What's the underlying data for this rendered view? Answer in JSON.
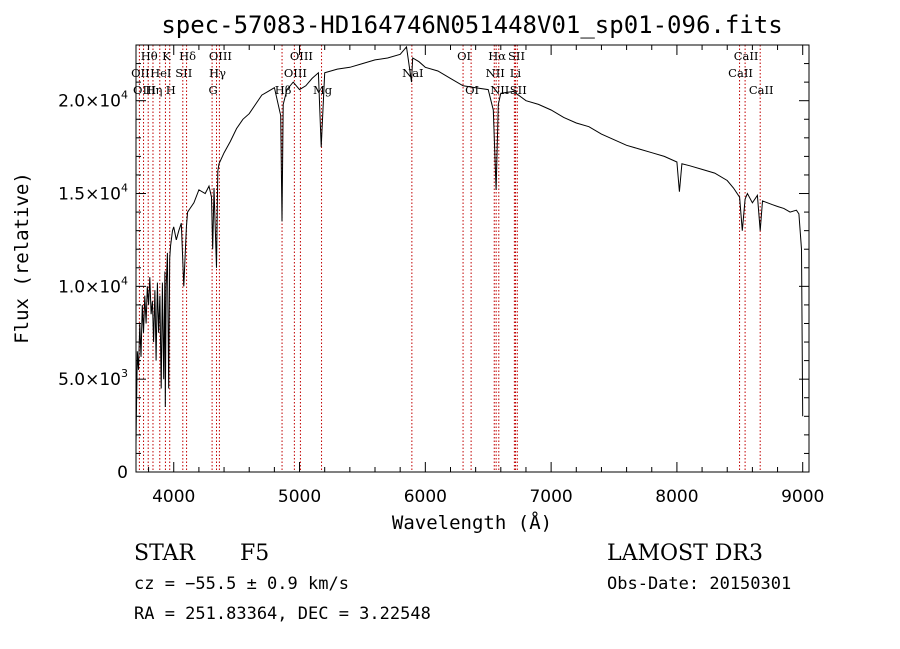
{
  "chart_data": {
    "type": "line",
    "title": "spec-57083-HD164746N051448V01_sp01-096.fits",
    "xlabel": "Wavelength (Å)",
    "ylabel": "Flux (relative)",
    "xlim": [
      3700,
      9050
    ],
    "ylim": [
      0,
      23000
    ],
    "x_ticks": [
      {
        "value": 4000,
        "label": "4000"
      },
      {
        "value": 5000,
        "label": "5000"
      },
      {
        "value": 6000,
        "label": "6000"
      },
      {
        "value": 7000,
        "label": "7000"
      },
      {
        "value": 8000,
        "label": "8000"
      },
      {
        "value": 9000,
        "label": "9000"
      }
    ],
    "y_ticks": [
      {
        "value": 0,
        "mant": "0",
        "exp": ""
      },
      {
        "value": 5000,
        "mant": "5.0×10",
        "exp": "3"
      },
      {
        "value": 10000,
        "mant": "1.0×10",
        "exp": "4"
      },
      {
        "value": 15000,
        "mant": "1.5×10",
        "exp": "4"
      },
      {
        "value": 20000,
        "mant": "2.0×10",
        "exp": "4"
      }
    ],
    "line_color": "#000000",
    "marker_color": "#c00000",
    "series": [
      {
        "x": [
          3700,
          3710,
          3720,
          3730,
          3740,
          3750,
          3760,
          3770,
          3780,
          3790,
          3800,
          3810,
          3820,
          3830,
          3840,
          3850,
          3860,
          3870,
          3880,
          3890,
          3900,
          3910,
          3920,
          3930,
          3933,
          3940,
          3950,
          3960,
          3968,
          3975,
          3990,
          4000,
          4020,
          4040,
          4060,
          4080,
          4101,
          4110,
          4130,
          4160,
          4200,
          4250,
          4280,
          4300,
          4310,
          4320,
          4340,
          4350,
          4360,
          4400,
          4450,
          4500,
          4550,
          4600,
          4650,
          4700,
          4750,
          4800,
          4850,
          4861,
          4870,
          4900,
          4950,
          5000,
          5050,
          5100,
          5150,
          5172,
          5200,
          5300,
          5400,
          5500,
          5600,
          5700,
          5800,
          5850,
          5890,
          5900,
          5950,
          6000,
          6100,
          6200,
          6300,
          6400,
          6500,
          6540,
          6563,
          6580,
          6600,
          6700,
          6800,
          6900,
          7000,
          7100,
          7200,
          7300,
          7400,
          7500,
          7600,
          7700,
          7800,
          7900,
          8000,
          8020,
          8040,
          8100,
          8200,
          8300,
          8400,
          8450,
          8498,
          8520,
          8542,
          8560,
          8600,
          8640,
          8662,
          8680,
          8720,
          8760,
          8800,
          8850,
          8900,
          8950,
          8970,
          8990,
          9000
        ],
        "y": [
          1500,
          6500,
          5500,
          8000,
          6200,
          9000,
          7500,
          9500,
          8000,
          10000,
          9000,
          10500,
          8500,
          9200,
          7000,
          9800,
          6000,
          10200,
          7500,
          9500,
          4500,
          10200,
          5000,
          10800,
          3500,
          10000,
          11800,
          4500,
          11500,
          12200,
          13000,
          13200,
          12500,
          13000,
          13400,
          10000,
          13200,
          14000,
          14200,
          14500,
          15200,
          15000,
          15400,
          14800,
          12000,
          15300,
          11000,
          16200,
          16600,
          17200,
          17800,
          18500,
          19000,
          19300,
          19800,
          20300,
          20500,
          20700,
          19200,
          13500,
          19800,
          20600,
          21000,
          20600,
          20800,
          21200,
          21500,
          17500,
          21500,
          21700,
          21800,
          22000,
          22200,
          22300,
          22500,
          22900,
          21000,
          22300,
          22100,
          21800,
          21600,
          21200,
          20800,
          20700,
          20600,
          19500,
          15200,
          19800,
          20400,
          20500,
          20000,
          19800,
          19500,
          19100,
          18800,
          18600,
          18200,
          17900,
          17600,
          17400,
          17200,
          17000,
          16700,
          15100,
          16600,
          16500,
          16300,
          16100,
          15700,
          15300,
          14800,
          13000,
          14700,
          15000,
          14500,
          14900,
          13000,
          14600,
          14500,
          14400,
          14300,
          14200,
          14000,
          14100,
          13900,
          12000,
          3000
        ]
      }
    ],
    "spectral_lines": [
      {
        "name": "Hθ",
        "wl": 3797,
        "row": 0
      },
      {
        "name": "OII",
        "wl": 3727,
        "row": 1
      },
      {
        "name": "OIII",
        "wl": 3760,
        "row": 2
      },
      {
        "name": "K",
        "wl": 3934,
        "row": 0
      },
      {
        "name": "HeI",
        "wl": 3889,
        "row": 1
      },
      {
        "name": "Hη",
        "wl": 3835,
        "row": 2
      },
      {
        "name": "SII",
        "wl": 4072,
        "row": 1
      },
      {
        "name": "H",
        "wl": 3968,
        "row": 2
      },
      {
        "name": "Hδ",
        "wl": 4102,
        "row": 0
      },
      {
        "name": "OIII",
        "wl": 4363,
        "row": 0
      },
      {
        "name": "Hγ",
        "wl": 4340,
        "row": 1
      },
      {
        "name": "G",
        "wl": 4305,
        "row": 2
      },
      {
        "name": "OIII",
        "wl": 5007,
        "row": 0
      },
      {
        "name": "OIII",
        "wl": 4959,
        "row": 1
      },
      {
        "name": "Hβ",
        "wl": 4861,
        "row": 2
      },
      {
        "name": "Mg",
        "wl": 5175,
        "row": 2
      },
      {
        "name": "NaI",
        "wl": 5893,
        "row": 1
      },
      {
        "name": "OI",
        "wl": 6300,
        "row": 0
      },
      {
        "name": "OI",
        "wl": 6364,
        "row": 2
      },
      {
        "name": "Hα",
        "wl": 6563,
        "row": 0
      },
      {
        "name": "SII",
        "wl": 6717,
        "row": 0
      },
      {
        "name": "NII",
        "wl": 6548,
        "row": 1
      },
      {
        "name": "Li",
        "wl": 6708,
        "row": 1
      },
      {
        "name": "NII",
        "wl": 6584,
        "row": 2
      },
      {
        "name": "SII",
        "wl": 6731,
        "row": 2
      },
      {
        "name": "CaII",
        "wl": 8542,
        "row": 0
      },
      {
        "name": "CaII",
        "wl": 8498,
        "row": 1
      },
      {
        "name": "CaII",
        "wl": 8662,
        "row": 2
      }
    ]
  },
  "info": {
    "object_class": "STAR",
    "subclass": "F5",
    "survey": "LAMOST DR3",
    "cz": "cz = −55.5 ± 0.9 km/s",
    "obs_date": "Obs-Date: 20150301",
    "radec": "RA = 251.83364, DEC =   3.22548"
  }
}
